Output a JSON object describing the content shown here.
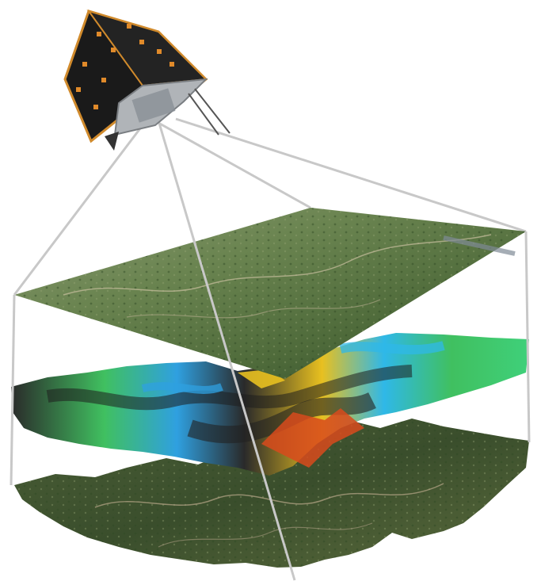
{
  "scene": {
    "colors": {
      "background": "#ffffff",
      "frame_lines": "#c8c8c8",
      "satellite_body": "#1a1a1a",
      "satellite_trim": "#d08a2c",
      "satellite_panel_marks": "#e08a2a",
      "satellite_bus": "#b0b4b8",
      "imagery_green": "#5f7a45",
      "imagery_dark": "#3f5530",
      "dem_low": "#2f9fe0",
      "dem_mid": "#3fd07a",
      "dem_high": "#e8c020",
      "dem_peak": "#d84a1c",
      "terrain_dark": "#3c3a30"
    }
  }
}
